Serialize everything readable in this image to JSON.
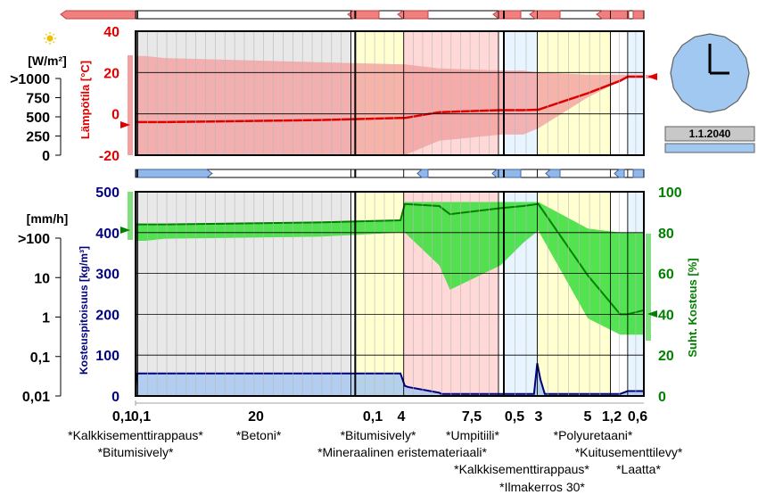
{
  "chart_data": [
    {
      "type": "area",
      "ylabel": "Lämpötila [°C]",
      "ylim": [
        -20,
        40
      ],
      "yticks": [
        "40",
        "20",
        "0",
        "-20"
      ],
      "y_values": [
        40,
        20,
        0,
        -20
      ],
      "line_color": "#e00000",
      "band_color": "#f4a0a0",
      "series": [
        {
          "name": "Lämpötila",
          "x": [
            0,
            0.92,
            2.7,
            17.0,
            24.6,
            25.0,
            28.2,
            33.9,
            36.0,
            37.4,
            42.0,
            45.0,
            45.7,
            47.2
          ],
          "values": [
            -4,
            -4,
            -4,
            -3,
            -2,
            -2,
            0.8,
            1.8,
            1.8,
            2,
            10,
            16,
            18,
            18
          ]
        }
      ],
      "band_upper": [
        28,
        28,
        27,
        25,
        24,
        24,
        22,
        21,
        21,
        20,
        19,
        19,
        19,
        19
      ],
      "band_lower": [
        -20,
        -20,
        -20,
        -20,
        -20,
        -20,
        -13,
        -10,
        -10,
        -7,
        8,
        16,
        18,
        18
      ],
      "aux_axis": {
        "title": "[W/m²]",
        "ticks": [
          ">1000",
          "750",
          "500",
          "250",
          "0"
        ]
      }
    },
    {
      "type": "line",
      "ylabel": "Kosteuspitoisuus [kg/m³]",
      "y2label": "Suht. Kosteus [%]",
      "ylim": [
        0,
        500
      ],
      "y2lim": [
        0,
        100
      ],
      "yticks": [
        "500",
        "400",
        "300",
        "200",
        "100",
        "0"
      ],
      "y_values": [
        500,
        400,
        300,
        200,
        100,
        0
      ],
      "y2ticks": [
        "100",
        "80",
        "60",
        "40",
        "20",
        "0"
      ],
      "y2_values": [
        100,
        80,
        60,
        40,
        20,
        0
      ],
      "series": [
        {
          "name": "Kosteuspitoisuus",
          "color": "#000080",
          "x": [
            0,
            0.1,
            0.2,
            0.92,
            24.6,
            25.0,
            25.3,
            28.2,
            28.4,
            37.0,
            37.3,
            37.6,
            38.0,
            45.0,
            45.7,
            47.2
          ],
          "values": [
            0,
            50,
            55,
            55,
            55,
            25,
            22,
            8,
            5,
            5,
            80,
            40,
            5,
            5,
            12,
            12
          ]
        },
        {
          "name": "Suht. Kosteus",
          "color": "#008000",
          "x": [
            0,
            0.92,
            2.7,
            17.0,
            24.6,
            25.0,
            28.2,
            29.2,
            33.9,
            36.0,
            37.4,
            42.0,
            45.0,
            45.7,
            47.2
          ],
          "values": [
            84,
            84,
            84,
            85,
            86,
            94,
            93,
            89,
            92,
            93,
            94,
            59,
            40,
            40,
            42
          ]
        }
      ],
      "band_upper": [
        84,
        84,
        84,
        85,
        86,
        95,
        95,
        95,
        95,
        95,
        95,
        82,
        80,
        80,
        80
      ],
      "band_lower": [
        76,
        76,
        77,
        78,
        80,
        80,
        64,
        52,
        64,
        75,
        81,
        38,
        30,
        30,
        30
      ],
      "band_color": "#40e040",
      "content_band_color": "#a8c8f0",
      "aux_axis": {
        "title": "[mm/h]",
        "ticks": [
          ">100",
          "10",
          "1",
          "0,1",
          "0,01"
        ]
      }
    }
  ],
  "layers": [
    {
      "thickness": "0,1",
      "width_mm": 0.1,
      "color": "#e8e8e8"
    },
    {
      "thickness": "0,1",
      "width_mm": 0.1,
      "color": "#ffffff"
    },
    {
      "thickness": "20",
      "width_mm": 19.8,
      "color": "#e8e8e8"
    },
    {
      "thickness": "0,1",
      "width_mm": 0.4,
      "color": "#ffffff"
    },
    {
      "thickness": "4",
      "width_mm": 4.5,
      "color": "#ffffd0"
    },
    {
      "thickness": "7,5",
      "width_mm": 8.8,
      "color": "#ffd8d8"
    },
    {
      "thickness": "0,5",
      "width_mm": 0.5,
      "color": "#ffffff"
    },
    {
      "thickness": "3",
      "width_mm": 3.1,
      "color": "#e8f4ff"
    },
    {
      "thickness": "5",
      "width_mm": 6.8,
      "color": "#ffffd0"
    },
    {
      "thickness": "1,2",
      "width_mm": 1.6,
      "color": "#ffffff"
    },
    {
      "thickness": "0,6",
      "width_mm": 1.5,
      "color": "#e8f4ff"
    }
  ],
  "materials": [
    [
      "*Kalkkisementtirappaus*",
      "*Betoni*",
      "*Bitumisively*",
      "*Umpitiili*",
      "*Polyuretaani*"
    ],
    [
      "*Bitumisively*",
      "*Mineraalinen eristemateriaali*",
      "*Kuitusementtilevy*"
    ],
    [
      "*Kalkkisementtirappaus*",
      "*Laatta*"
    ],
    [
      "*Ilmakerros 30*"
    ]
  ],
  "clock": {
    "date": "1.1.2040",
    "face_color": "#a0c8f0"
  },
  "colors": {
    "red": "#e00000",
    "navy": "#000080",
    "green": "#008000"
  }
}
